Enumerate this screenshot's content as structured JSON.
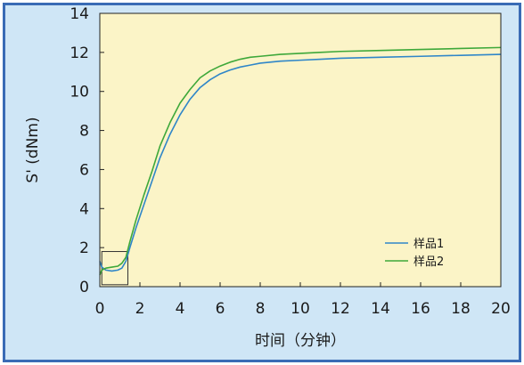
{
  "chart_data": {
    "type": "line",
    "title": "",
    "xlabel": "时间（分钟）",
    "ylabel": "S' (dNm)",
    "xlim": [
      0,
      20
    ],
    "ylim": [
      0,
      14
    ],
    "xticks": [
      0,
      2,
      4,
      6,
      8,
      10,
      12,
      14,
      16,
      18,
      20
    ],
    "yticks": [
      0,
      2,
      4,
      6,
      8,
      10,
      12,
      14
    ],
    "grid": false,
    "legend": "bottom-right",
    "background_color": "#fbf4c7",
    "frame_color": "#cfe6f6",
    "border_color": "#3a6bb5",
    "annotations": [
      {
        "type": "rectangle",
        "x": [
          0.1,
          1.4
        ],
        "y": [
          0.1,
          1.8
        ]
      }
    ],
    "series": [
      {
        "name": "样品1",
        "color": "#2f86c8",
        "x": [
          0,
          0.1,
          0.3,
          0.6,
          0.9,
          1.1,
          1.3,
          1.5,
          1.8,
          2.2,
          2.6,
          3.0,
          3.5,
          4.0,
          4.5,
          5.0,
          5.5,
          6.0,
          6.5,
          7.0,
          7.5,
          8.0,
          9.0,
          10.0,
          11.0,
          12.0,
          14.0,
          16.0,
          18.0,
          20.0
        ],
        "y": [
          1.3,
          1.0,
          0.85,
          0.8,
          0.85,
          0.95,
          1.3,
          2.0,
          3.0,
          4.2,
          5.4,
          6.6,
          7.8,
          8.8,
          9.6,
          10.2,
          10.6,
          10.9,
          11.1,
          11.25,
          11.35,
          11.45,
          11.55,
          11.6,
          11.65,
          11.7,
          11.75,
          11.8,
          11.85,
          11.9
        ]
      },
      {
        "name": "样品2",
        "color": "#3ea83a",
        "x": [
          0,
          0.1,
          0.3,
          0.6,
          0.9,
          1.1,
          1.3,
          1.5,
          1.8,
          2.2,
          2.6,
          3.0,
          3.5,
          4.0,
          4.5,
          5.0,
          5.5,
          6.0,
          6.5,
          7.0,
          7.5,
          8.0,
          9.0,
          10.0,
          11.0,
          12.0,
          14.0,
          16.0,
          18.0,
          20.0
        ],
        "y": [
          0.6,
          0.85,
          0.95,
          1.0,
          1.05,
          1.2,
          1.5,
          2.3,
          3.4,
          4.7,
          5.9,
          7.2,
          8.4,
          9.4,
          10.1,
          10.7,
          11.05,
          11.3,
          11.5,
          11.65,
          11.75,
          11.8,
          11.9,
          11.95,
          12.0,
          12.05,
          12.1,
          12.15,
          12.2,
          12.25
        ]
      }
    ]
  }
}
